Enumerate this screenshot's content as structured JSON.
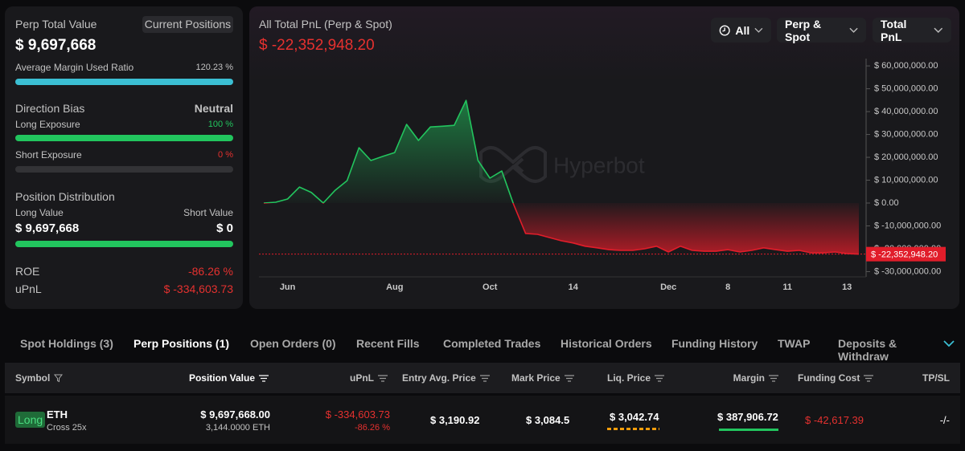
{
  "left_panel": {
    "title": "Perp Total Value",
    "button": "Current Positions",
    "total_value": "$ 9,697,668",
    "margin_ratio_label": "Average Margin Used Ratio",
    "margin_ratio": "120.23 %",
    "direction_bias_label": "Direction Bias",
    "direction_bias": "Neutral",
    "long_exposure_label": "Long Exposure",
    "long_exposure": "100 %",
    "short_exposure_label": "Short Exposure",
    "short_exposure": "0 %",
    "distribution_label": "Position Distribution",
    "long_value_label": "Long Value",
    "short_value_label": "Short Value",
    "long_value": "$ 9,697,668",
    "short_value": "$ 0",
    "roe_label": "ROE",
    "roe": "-86.26 %",
    "upnl_label": "uPnL",
    "upnl": "$ -334,603.73"
  },
  "chart_data": {
    "type": "area",
    "title": "All Total PnL (Perp & Spot)",
    "total_pnl_label": "$ -22,352,948.20",
    "watermark": "Hyperbot",
    "positive_color": "#22c55e",
    "negative_color": "#e11d2a",
    "categories": [
      null,
      null,
      "Jun",
      null,
      null,
      null,
      null,
      null,
      null,
      null,
      null,
      "Aug",
      null,
      null,
      null,
      null,
      null,
      null,
      null,
      "Oct",
      null,
      null,
      null,
      null,
      null,
      null,
      "14",
      null,
      null,
      null,
      null,
      null,
      null,
      null,
      "Dec",
      null,
      null,
      null,
      null,
      "8",
      null,
      null,
      null,
      null,
      "11",
      null,
      null,
      null,
      null,
      "13",
      null
    ],
    "values": [
      0,
      350000,
      1750000,
      7000000,
      4600000,
      0,
      5600000,
      9800000,
      24200000,
      18600000,
      20400000,
      22100000,
      34400000,
      27400000,
      33300000,
      33600000,
      34000000,
      44900000,
      18600000,
      10900000,
      14000000,
      -700000,
      -13300000,
      -13700000,
      -15100000,
      -16500000,
      -17500000,
      -18900000,
      -19600000,
      -20400000,
      -20700000,
      -20700000,
      -20000000,
      -18900000,
      -21400000,
      -18900000,
      -20700000,
      -21100000,
      -21100000,
      -20400000,
      -21400000,
      -20700000,
      -19600000,
      -20400000,
      -21100000,
      -20700000,
      -21800000,
      -21800000,
      -21400000,
      -22100000,
      -22352948.2
    ],
    "ylim": [
      -32300000,
      63200000
    ],
    "yticks": [
      {
        "value": 60000000,
        "label": "$ 60,000,000.00"
      },
      {
        "value": 50000000,
        "label": "$ 50,000,000.00"
      },
      {
        "value": 40000000,
        "label": "$ 40,000,000.00"
      },
      {
        "value": 30000000,
        "label": "$ 30,000,000.00"
      },
      {
        "value": 20000000,
        "label": "$ 20,000,000.00"
      },
      {
        "value": 10000000,
        "label": "$ 10,000,000.00"
      },
      {
        "value": 0,
        "label": "$ 0.00"
      },
      {
        "value": -10000000,
        "label": "$ -10,000,000.00"
      },
      {
        "value": -20000000,
        "label": "$ -20,000,000.00"
      },
      {
        "value": -30000000,
        "label": "$ -30,000,000.00"
      }
    ]
  },
  "filters": [
    "All",
    "Perp & Spot",
    "Total PnL"
  ],
  "tabs": [
    "Spot Holdings (3)",
    "Perp Positions (1)",
    "Open Orders (0)",
    "Recent Fills",
    "Completed Trades",
    "Historical Orders",
    "Funding History",
    "TWAP",
    "Deposits & Withdraw"
  ],
  "table": {
    "columns": [
      "Symbol",
      "Position Value",
      "uPnL",
      "Entry Avg. Price",
      "Mark Price",
      "Liq. Price",
      "Margin",
      "Funding Cost",
      "TP/SL"
    ],
    "rows": [
      {
        "side": "Long",
        "symbol": "ETH",
        "mode": "Cross 25x",
        "position_value": "$ 9,697,668.00",
        "size": "3,144.0000 ETH",
        "upnl": "$ -334,603.73",
        "upnl_pct": "-86.26 %",
        "entry_price": "$ 3,190.92",
        "mark_price": "$ 3,084.5",
        "liq_price": "$ 3,042.74",
        "margin": "$ 387,906.72",
        "funding_cost": "$ -42,617.39",
        "tp_sl": "-/-"
      }
    ]
  }
}
